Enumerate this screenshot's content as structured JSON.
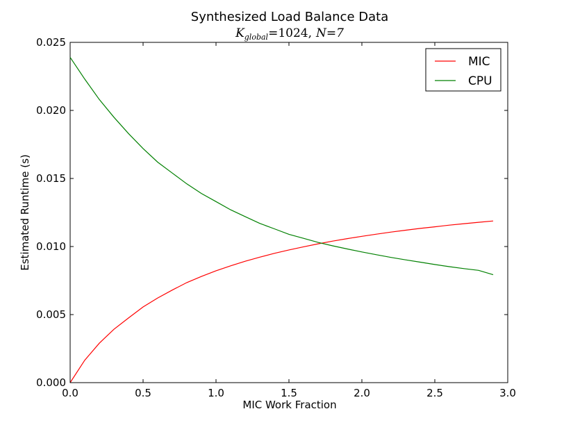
{
  "chart_data": {
    "type": "line",
    "title": "Synthesized Load Balance Data",
    "subtitle": "K_global = 1024, N = 7",
    "subtitle_parts": {
      "k_symbol": "K",
      "k_subscript": "global",
      "k_value": "=1024,",
      "n_part": "N=7"
    },
    "xlabel": "MIC Work Fraction",
    "ylabel": "Estimated Runtime (s)",
    "xlim": [
      0.0,
      3.0
    ],
    "ylim": [
      0.0,
      0.025
    ],
    "xticks": [
      0.0,
      0.5,
      1.0,
      1.5,
      2.0,
      2.5,
      3.0
    ],
    "xtick_labels": [
      "0.0",
      "0.5",
      "1.0",
      "1.5",
      "2.0",
      "2.5",
      "3.0"
    ],
    "yticks": [
      0.0,
      0.005,
      0.01,
      0.015,
      0.02,
      0.025
    ],
    "ytick_labels": [
      "0.000",
      "0.005",
      "0.010",
      "0.015",
      "0.020",
      "0.025"
    ],
    "legend_position": "top-right",
    "x": [
      0.0,
      0.1,
      0.2,
      0.3,
      0.4,
      0.5,
      0.6,
      0.7,
      0.8,
      0.9,
      1.0,
      1.1,
      1.2,
      1.3,
      1.4,
      1.5,
      1.6,
      1.7,
      1.8,
      1.9,
      2.0,
      2.1,
      2.2,
      2.3,
      2.4,
      2.5,
      2.6,
      2.7,
      2.8,
      2.9
    ],
    "series": [
      {
        "name": "MIC",
        "color": "#ff0000",
        "values": [
          0.0,
          0.00165,
          0.0029,
          0.00392,
          0.00475,
          0.00556,
          0.00622,
          0.0068,
          0.00735,
          0.0078,
          0.00822,
          0.00858,
          0.00892,
          0.00922,
          0.0095,
          0.00975,
          0.00998,
          0.0102,
          0.0104,
          0.01058,
          0.01075,
          0.01091,
          0.01106,
          0.0112,
          0.01133,
          0.01145,
          0.01157,
          0.01168,
          0.01178,
          0.01188
        ]
      },
      {
        "name": "CPU",
        "color": "#008000",
        "values": [
          0.0239,
          0.0223,
          0.0208,
          0.0195,
          0.0183,
          0.0172,
          0.0162,
          0.0154,
          0.0146,
          0.0139,
          0.0133,
          0.0127,
          0.0122,
          0.0117,
          0.0113,
          0.0109,
          0.0106,
          0.0103,
          0.01005,
          0.00982,
          0.0096,
          0.0094,
          0.0092,
          0.00902,
          0.00885,
          0.00868,
          0.00852,
          0.00838,
          0.00825,
          0.00793
        ]
      }
    ]
  }
}
